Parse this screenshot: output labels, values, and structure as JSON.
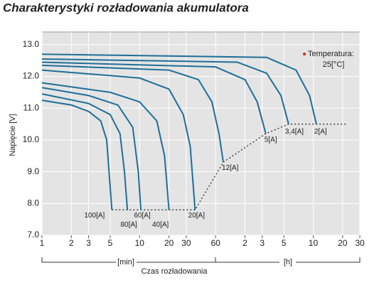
{
  "chart_data": {
    "type": "line",
    "title": "Charakterystyki rozładowania akumulatora",
    "y_label": "Napięcie [V]",
    "x_label": "Czas rozładowania",
    "x_unit_labels": [
      "[min]",
      "[h]"
    ],
    "annotation": [
      "Temperatura:",
      "25[°C]"
    ],
    "annotation_color": "#d22",
    "x_scale": "log",
    "grid": true,
    "xlim": [
      1,
      1800
    ],
    "ylim": [
      7.0,
      13.4
    ],
    "xticks": [
      1,
      2,
      3,
      5,
      10,
      20,
      30,
      60,
      {
        "value": 120,
        "label": "2"
      },
      {
        "value": 180,
        "label": "3"
      },
      {
        "value": 300,
        "label": "5"
      },
      {
        "value": 600,
        "label": "10"
      },
      {
        "value": 1200,
        "label": "20"
      },
      {
        "value": 1800,
        "label": "30"
      }
    ],
    "yticks": [
      {
        "value": 7,
        "label": "7.0"
      },
      {
        "value": 8,
        "label": "8.0"
      },
      {
        "value": 9,
        "label": "9.0"
      },
      {
        "value": 10,
        "label": "10.0"
      },
      {
        "value": 11,
        "label": "11.0"
      },
      {
        "value": 12,
        "label": "12.0"
      },
      {
        "value": 13,
        "label": "13.0"
      }
    ],
    "series": [
      {
        "name": "100[A]",
        "color": "#1f6e98",
        "x": [
          1,
          2,
          3,
          4,
          4.6,
          5,
          5.2
        ],
        "values": [
          11.25,
          11.1,
          10.9,
          10.6,
          10.0,
          8.5,
          7.8
        ]
      },
      {
        "name": "80[A]",
        "color": "#1f6e98",
        "x": [
          1,
          3,
          5,
          6.3,
          7,
          7.5
        ],
        "values": [
          11.45,
          11.15,
          10.8,
          10.2,
          9.0,
          7.8
        ]
      },
      {
        "name": "60[A]",
        "color": "#1f6e98",
        "x": [
          1,
          3,
          6,
          8.5,
          9.7,
          10.3
        ],
        "values": [
          11.65,
          11.4,
          11.1,
          10.4,
          9.0,
          7.8
        ]
      },
      {
        "name": "40[A]",
        "color": "#1f6e98",
        "x": [
          1,
          5,
          10,
          15,
          18,
          20
        ],
        "values": [
          11.8,
          11.5,
          11.2,
          10.6,
          9.5,
          7.8
        ]
      },
      {
        "name": "20[A]",
        "color": "#1f6e98",
        "x": [
          1,
          10,
          20,
          28,
          33,
          37
        ],
        "values": [
          12.2,
          11.95,
          11.6,
          10.8,
          9.8,
          7.8
        ]
      },
      {
        "name": "12[A]",
        "color": "#1f6e98",
        "x": [
          1,
          20,
          40,
          55,
          65,
          72
        ],
        "values": [
          12.35,
          12.2,
          11.9,
          11.2,
          10.2,
          9.3
        ]
      },
      {
        "name": "5[A]",
        "color": "#1f6e98",
        "x": [
          1,
          60,
          120,
          160,
          196
        ],
        "values": [
          12.45,
          12.3,
          11.9,
          11.2,
          10.2
        ]
      },
      {
        "name": "3,4[A]",
        "color": "#1f6e98",
        "x": [
          1,
          100,
          200,
          280,
          336
        ],
        "values": [
          12.55,
          12.45,
          12.1,
          11.4,
          10.5
        ]
      },
      {
        "name": "2[A]",
        "color": "#1f6e98",
        "x": [
          1,
          200,
          400,
          550,
          646
        ],
        "values": [
          12.7,
          12.6,
          12.2,
          11.4,
          10.5
        ]
      }
    ],
    "limit_line": {
      "x": [
        5.2,
        37,
        72,
        196,
        336,
        646,
        1350
      ],
      "values": [
        7.8,
        7.8,
        9.3,
        10.2,
        10.5,
        10.5,
        10.5
      ]
    }
  }
}
